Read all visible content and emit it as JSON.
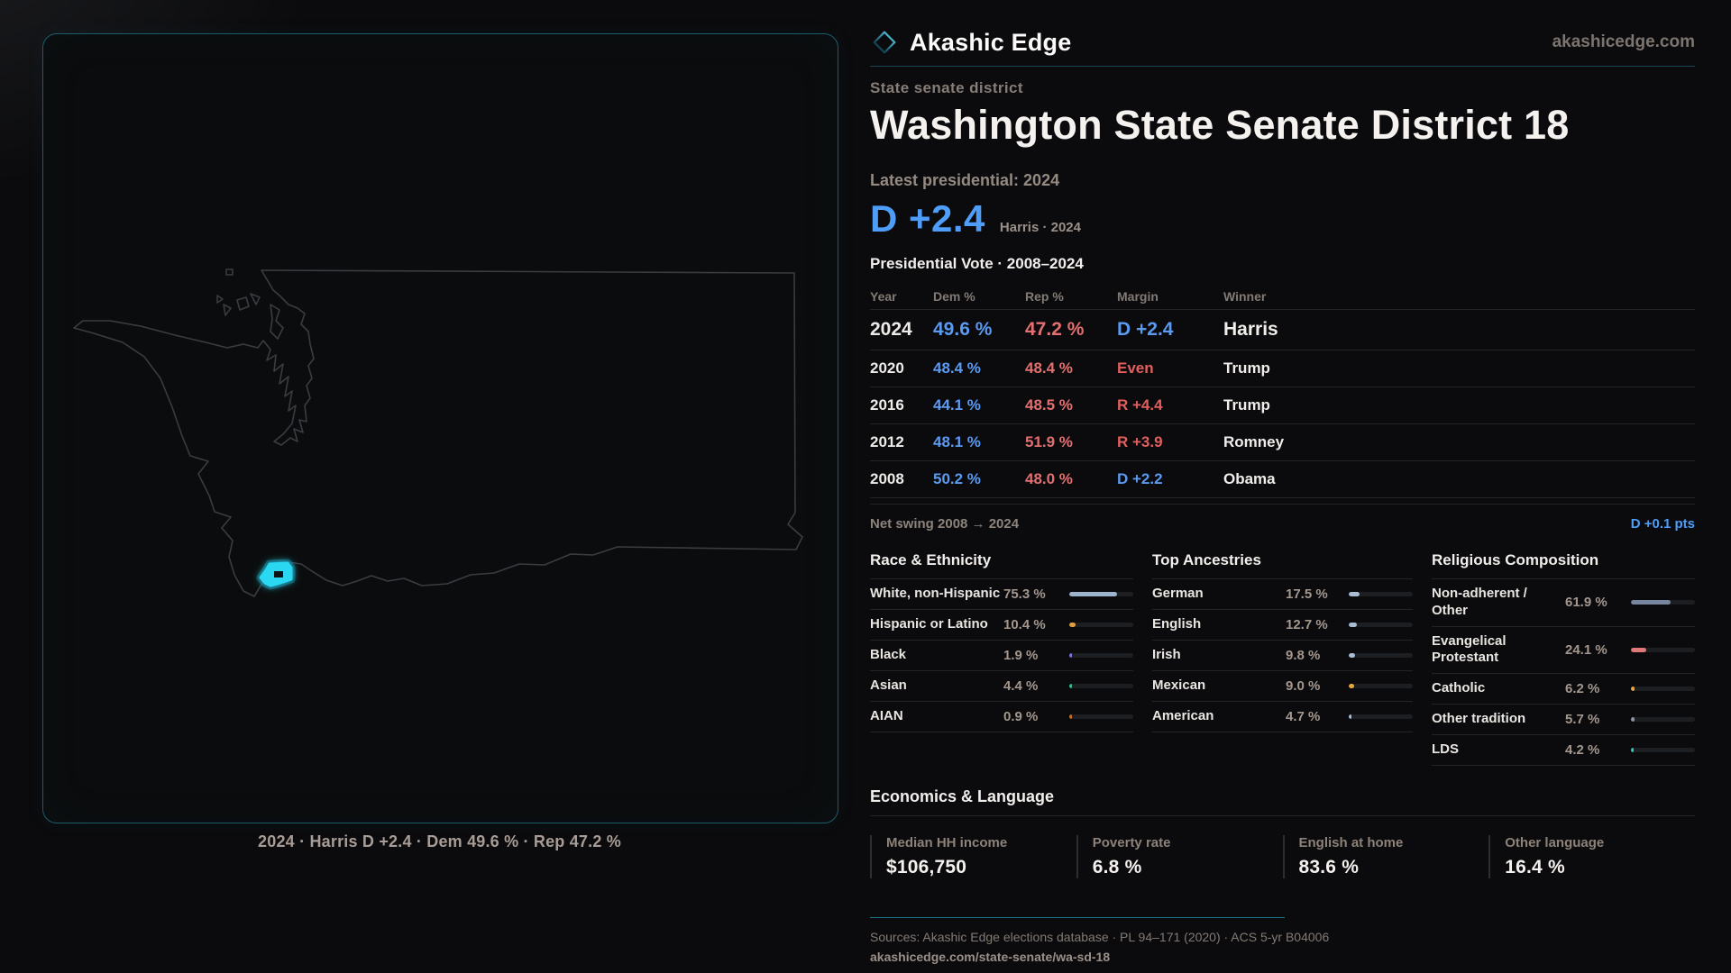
{
  "brand": {
    "name": "Akashic Edge",
    "domain": "akashicedge.com",
    "accent_teal": "#1d5b6b",
    "accent_blue": "#4e9df8",
    "accent_red": "#e37070"
  },
  "header": {
    "kicker": "State senate district",
    "title": "Washington State Senate District 18",
    "latest_label": "Latest presidential: 2024",
    "headline_margin": "D +2.4",
    "headline_note": "Harris · 2024"
  },
  "map": {
    "caption": "2024 · Harris D +2.4 · Dem 49.6 % · Rep 47.2 %",
    "district_color": "#2bd8f2",
    "outline_color": "#3a3c41"
  },
  "vote_table": {
    "title": "Presidential Vote · 2008–2024",
    "columns": [
      "Year",
      "Dem %",
      "Rep %",
      "Margin",
      "Winner"
    ],
    "rows": [
      {
        "year": "2024",
        "dem": "49.6 %",
        "rep": "47.2 %",
        "margin": "D +2.4",
        "margin_side": "dem",
        "winner": "Harris"
      },
      {
        "year": "2020",
        "dem": "48.4 %",
        "rep": "48.4 %",
        "margin": "Even",
        "margin_side": "rep",
        "winner": "Trump"
      },
      {
        "year": "2016",
        "dem": "44.1 %",
        "rep": "48.5 %",
        "margin": "R +4.4",
        "margin_side": "rep",
        "winner": "Trump"
      },
      {
        "year": "2012",
        "dem": "48.1 %",
        "rep": "51.9 %",
        "margin": "R +3.9",
        "margin_side": "rep",
        "winner": "Romney"
      },
      {
        "year": "2008",
        "dem": "50.2 %",
        "rep": "48.0 %",
        "margin": "D +2.2",
        "margin_side": "dem",
        "winner": "Obama"
      }
    ],
    "net_swing_label": "Net swing 2008 → 2024",
    "net_swing_value": "D +0.1 pts"
  },
  "demographics": [
    {
      "title": "Race & Ethnicity",
      "rows": [
        {
          "label": "White, non-Hispanic",
          "value": "75.3 %",
          "pct": 75.3,
          "color": "#9db4cd"
        },
        {
          "label": "Hispanic or Latino",
          "value": "10.4 %",
          "pct": 10.4,
          "color": "#e0a03c"
        },
        {
          "label": "Black",
          "value": "1.9 %",
          "pct": 1.9,
          "color": "#7d76d9"
        },
        {
          "label": "Asian",
          "value": "4.4 %",
          "pct": 4.4,
          "color": "#2fbf8f"
        },
        {
          "label": "AIAN",
          "value": "0.9 %",
          "pct": 0.9,
          "color": "#c06f2e"
        }
      ]
    },
    {
      "title": "Top Ancestries",
      "rows": [
        {
          "label": "German",
          "value": "17.5 %",
          "pct": 17.5,
          "color": "#a9bdd3"
        },
        {
          "label": "English",
          "value": "12.7 %",
          "pct": 12.7,
          "color": "#a9bdd3"
        },
        {
          "label": "Irish",
          "value": "9.8 %",
          "pct": 9.8,
          "color": "#a9bdd3"
        },
        {
          "label": "Mexican",
          "value": "9.0 %",
          "pct": 9.0,
          "color": "#e8a838"
        },
        {
          "label": "American",
          "value": "4.7 %",
          "pct": 4.7,
          "color": "#a9bdd3"
        }
      ]
    },
    {
      "title": "Religious Composition",
      "rows": [
        {
          "label": "Non-adherent / Other",
          "value": "61.9 %",
          "pct": 61.9,
          "color": "#76869e"
        },
        {
          "label": "Evangelical Protestant",
          "value": "24.1 %",
          "pct": 24.1,
          "color": "#e17878"
        },
        {
          "label": "Catholic",
          "value": "6.2 %",
          "pct": 6.2,
          "color": "#e3a93e"
        },
        {
          "label": "Other tradition",
          "value": "5.7 %",
          "pct": 5.7,
          "color": "#8b93a4"
        },
        {
          "label": "LDS",
          "value": "4.2 %",
          "pct": 4.2,
          "color": "#2bd0b8"
        }
      ]
    }
  ],
  "economics": {
    "title": "Economics & Language",
    "stats": [
      {
        "label": "Median HH income",
        "value": "$106,750"
      },
      {
        "label": "Poverty rate",
        "value": "6.8 %"
      },
      {
        "label": "English at home",
        "value": "83.6 %"
      },
      {
        "label": "Other language",
        "value": "16.4 %"
      }
    ]
  },
  "footer": {
    "sources": "Sources: Akashic Edge elections database · PL 94–171 (2020) · ACS 5-yr B04006",
    "permalink": "akashicedge.com/state-senate/wa-sd-18"
  }
}
